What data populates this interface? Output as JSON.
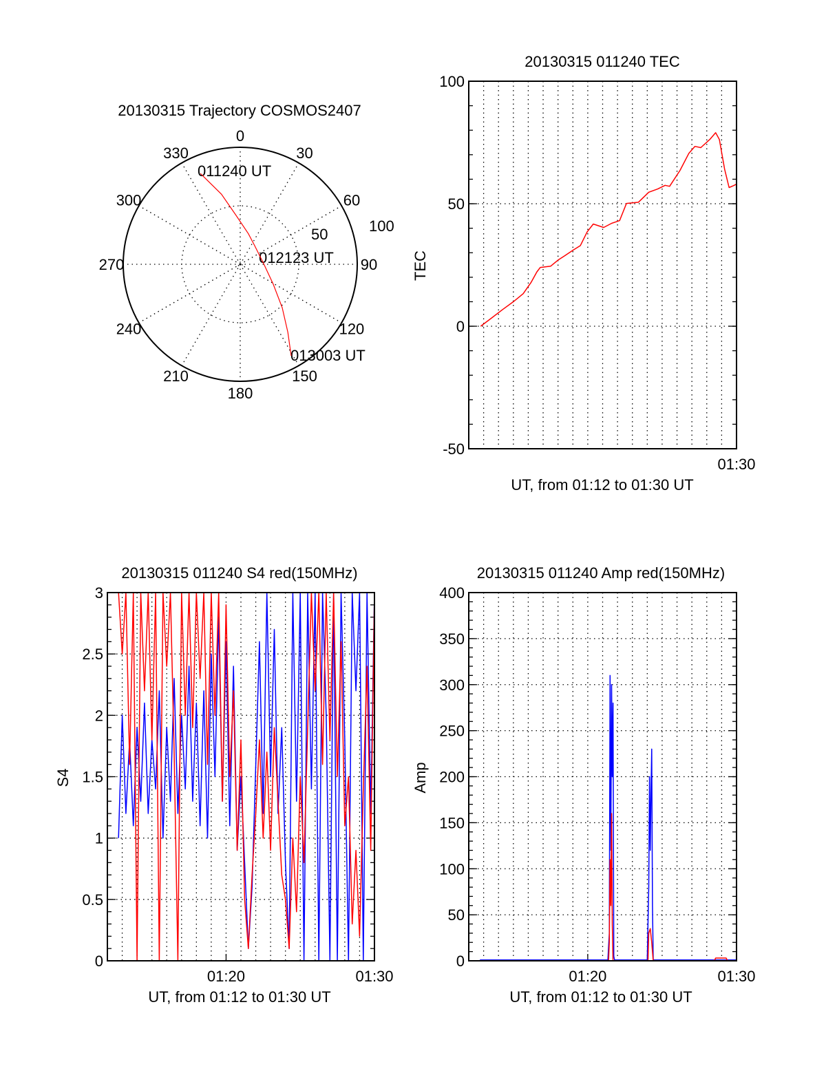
{
  "colors": {
    "red": "#ff0000",
    "blue": "#0000ff",
    "axis": "#000000"
  },
  "chart_data": [
    {
      "id": "polar",
      "type": "scatter",
      "title": "20130315 Trajectory COSMOS2407",
      "angle_labels": [
        "0",
        "30",
        "60",
        "90",
        "120",
        "150",
        "180",
        "210",
        "240",
        "270",
        "300",
        "330"
      ],
      "radial_labels": [
        "50",
        "100"
      ],
      "rlim": [
        0,
        100
      ],
      "trajectory": [
        {
          "az": 336.3,
          "r": 84.8
        },
        {
          "az": 345,
          "r": 62
        },
        {
          "az": 355.2,
          "r": 41.9
        },
        {
          "az": 15,
          "r": 27
        },
        {
          "az": 37.9,
          "r": 20.1
        },
        {
          "az": 88.3,
          "r": 20.0
        },
        {
          "az": 121.1,
          "r": 33.0
        },
        {
          "az": 135.9,
          "r": 51.6
        },
        {
          "az": 145,
          "r": 71
        },
        {
          "az": 150.9,
          "r": 89.5
        }
      ],
      "annotations": [
        {
          "text": "011240 UT"
        },
        {
          "text": "012123 UT"
        },
        {
          "text": "013003 UT"
        }
      ]
    },
    {
      "id": "tec",
      "type": "line",
      "title": "20130315 011240 TEC",
      "xlabel": "UT, from 01:12 to 01:30 UT",
      "ylabel": "TEC",
      "x_units": "minutes after 01:12",
      "xlim": [
        0,
        18
      ],
      "ylim": [
        -50,
        100
      ],
      "yticks": [
        {
          "value": 100,
          "label": "100"
        },
        {
          "value": 50,
          "label": "50"
        },
        {
          "value": 0,
          "label": "0"
        },
        {
          "value": -50,
          "label": "-50"
        }
      ],
      "xticks": [
        {
          "value": 18,
          "label": "01:30"
        }
      ],
      "grid": true,
      "series": [
        {
          "name": "TEC",
          "color": "#ff0000",
          "points": [
            [
              0.8,
              0
            ],
            [
              1.5,
              3.2
            ],
            [
              2.27,
              6.8
            ],
            [
              3.0,
              10
            ],
            [
              3.66,
              13.3
            ],
            [
              4.2,
              18
            ],
            [
              4.58,
              22.2
            ],
            [
              4.81,
              24.0
            ],
            [
              5.5,
              24.5
            ],
            [
              6.0,
              27
            ],
            [
              6.44,
              28.7
            ],
            [
              7.0,
              31
            ],
            [
              7.5,
              32.9
            ],
            [
              7.96,
              38.5
            ],
            [
              8.37,
              41.7
            ],
            [
              9.07,
              40.3
            ],
            [
              9.6,
              42
            ],
            [
              10.14,
              43.1
            ],
            [
              10.6,
              50.1
            ],
            [
              11.4,
              50.6
            ],
            [
              12.1,
              54.7
            ],
            [
              12.7,
              56
            ],
            [
              13.2,
              57.5
            ],
            [
              13.5,
              57.1
            ],
            [
              14.2,
              63.6
            ],
            [
              14.8,
              70.6
            ],
            [
              15.2,
              73.4
            ],
            [
              15.6,
              72.9
            ],
            [
              16.2,
              76.2
            ],
            [
              16.6,
              79.0
            ],
            [
              16.85,
              76.2
            ],
            [
              17.2,
              64.1
            ],
            [
              17.5,
              56.6
            ],
            [
              17.8,
              57.4
            ],
            [
              18,
              58.0
            ]
          ]
        }
      ]
    },
    {
      "id": "s4",
      "type": "line",
      "title": "20130315 011240 S4 red(150MHz)",
      "xlabel": "UT, from 01:12 to 01:30 UT",
      "ylabel": "S4",
      "x_units": "minutes after 01:12",
      "xlim": [
        0,
        18
      ],
      "ylim": [
        0,
        3
      ],
      "x_start": 0.75,
      "x_step": 0.25,
      "yticks": [
        {
          "value": 3,
          "label": "3"
        },
        {
          "value": 2.5,
          "label": "2.5"
        },
        {
          "value": 2,
          "label": "2"
        },
        {
          "value": 1.5,
          "label": "1.5"
        },
        {
          "value": 1,
          "label": "1"
        },
        {
          "value": 0.5,
          "label": "0.5"
        },
        {
          "value": 0,
          "label": "0"
        }
      ],
      "xticks": [
        {
          "value": 8,
          "label": "01:20"
        },
        {
          "value": 18,
          "label": "01:30"
        }
      ],
      "grid": true,
      "series": [
        {
          "name": "blue",
          "color": "#0000ff",
          "values": [
            1.0,
            2.0,
            1.2,
            1.8,
            1.1,
            1.9,
            1.3,
            2.1,
            1.2,
            1.8,
            1.4,
            2.2,
            1.0,
            1.9,
            1.3,
            2.3,
            1.2,
            2.0,
            1.4,
            2.4,
            1.3,
            2.1,
            1.1,
            2.2,
            1.0,
            2.5,
            1.5,
            2.8,
            1.3,
            2.6,
            1.1,
            2.4,
            0.9,
            1.5,
            0.8,
            0.1,
            0.6,
            1.6,
            2.6,
            1.2,
            3.0,
            1.5,
            2.7,
            1.2,
            1.9,
            0.8,
            0.1,
            3.0,
            1.3,
            3.0,
            0.0,
            3.0,
            1.4,
            3.0,
            0.0,
            3.0,
            2.0,
            0.0,
            3.0,
            0.0,
            3.0,
            1.8,
            0.0,
            3.0,
            2.2,
            3.0,
            0.0,
            3.0,
            1.2,
            3.0
          ]
        },
        {
          "name": "red",
          "color": "#ff0000",
          "values": [
            3.0,
            2.5,
            3.0,
            1.6,
            3.0,
            0.0,
            3.0,
            2.2,
            3.0,
            1.8,
            3.0,
            0.0,
            3.0,
            2.4,
            3.0,
            1.7,
            0.0,
            3.0,
            2.0,
            3.0,
            1.9,
            3.0,
            2.3,
            3.0,
            1.6,
            3.0,
            2.0,
            3.0,
            1.3,
            2.9,
            1.5,
            2.2,
            0.9,
            1.8,
            0.5,
            0.1,
            0.7,
            1.2,
            1.8,
            1.0,
            1.7,
            0.9,
            1.9,
            1.3,
            0.7,
            0.5,
            0.1,
            1.0,
            0.4,
            1.5,
            0.8,
            1.9,
            3.0,
            2.2,
            3.0,
            1.6,
            3.0,
            1.8,
            3.0,
            1.5,
            2.6,
            1.1,
            1.5,
            0.3,
            0.9,
            0.2,
            1.4,
            2.4,
            0.9,
            3.0
          ]
        }
      ]
    },
    {
      "id": "amp",
      "type": "line",
      "title": "20130315 011240 Amp red(150MHz)",
      "xlabel": "UT, from 01:12 to 01:30 UT",
      "ylabel": "Amp",
      "x_units": "minutes after 01:12",
      "xlim": [
        0,
        18
      ],
      "ylim": [
        0,
        400
      ],
      "yticks": [
        {
          "value": 400,
          "label": "400"
        },
        {
          "value": 350,
          "label": "350"
        },
        {
          "value": 300,
          "label": "300"
        },
        {
          "value": 250,
          "label": "250"
        },
        {
          "value": 200,
          "label": "200"
        },
        {
          "value": 150,
          "label": "150"
        },
        {
          "value": 100,
          "label": "100"
        },
        {
          "value": 50,
          "label": "50"
        },
        {
          "value": 0,
          "label": "0"
        }
      ],
      "xticks": [
        {
          "value": 8,
          "label": "01:20"
        },
        {
          "value": 18,
          "label": "01:30"
        }
      ],
      "grid": true,
      "series": [
        {
          "name": "blue",
          "color": "#0000ff",
          "points": [
            [
              0.75,
              1
            ],
            [
              9.35,
              1
            ],
            [
              9.45,
              30
            ],
            [
              9.5,
              310
            ],
            [
              9.55,
              120
            ],
            [
              9.6,
              300
            ],
            [
              9.65,
              200
            ],
            [
              9.7,
              280
            ],
            [
              9.75,
              5
            ],
            [
              9.8,
              1
            ],
            [
              12.0,
              1
            ],
            [
              12.1,
              80
            ],
            [
              12.15,
              200
            ],
            [
              12.2,
              120
            ],
            [
              12.25,
              180
            ],
            [
              12.3,
              230
            ],
            [
              12.35,
              60
            ],
            [
              12.4,
              1
            ],
            [
              18,
              1
            ]
          ]
        },
        {
          "name": "red",
          "color": "#ff0000",
          "points": [
            [
              0.75,
              0
            ],
            [
              9.4,
              0
            ],
            [
              9.45,
              20
            ],
            [
              9.5,
              110
            ],
            [
              9.55,
              60
            ],
            [
              9.6,
              160
            ],
            [
              9.65,
              40
            ],
            [
              9.7,
              0
            ],
            [
              12.05,
              0
            ],
            [
              12.1,
              30
            ],
            [
              12.2,
              35
            ],
            [
              12.3,
              20
            ],
            [
              12.4,
              0
            ],
            [
              16.5,
              0
            ],
            [
              16.6,
              3
            ],
            [
              17.3,
              3
            ],
            [
              17.4,
              0
            ],
            [
              18,
              0
            ]
          ]
        }
      ]
    }
  ]
}
